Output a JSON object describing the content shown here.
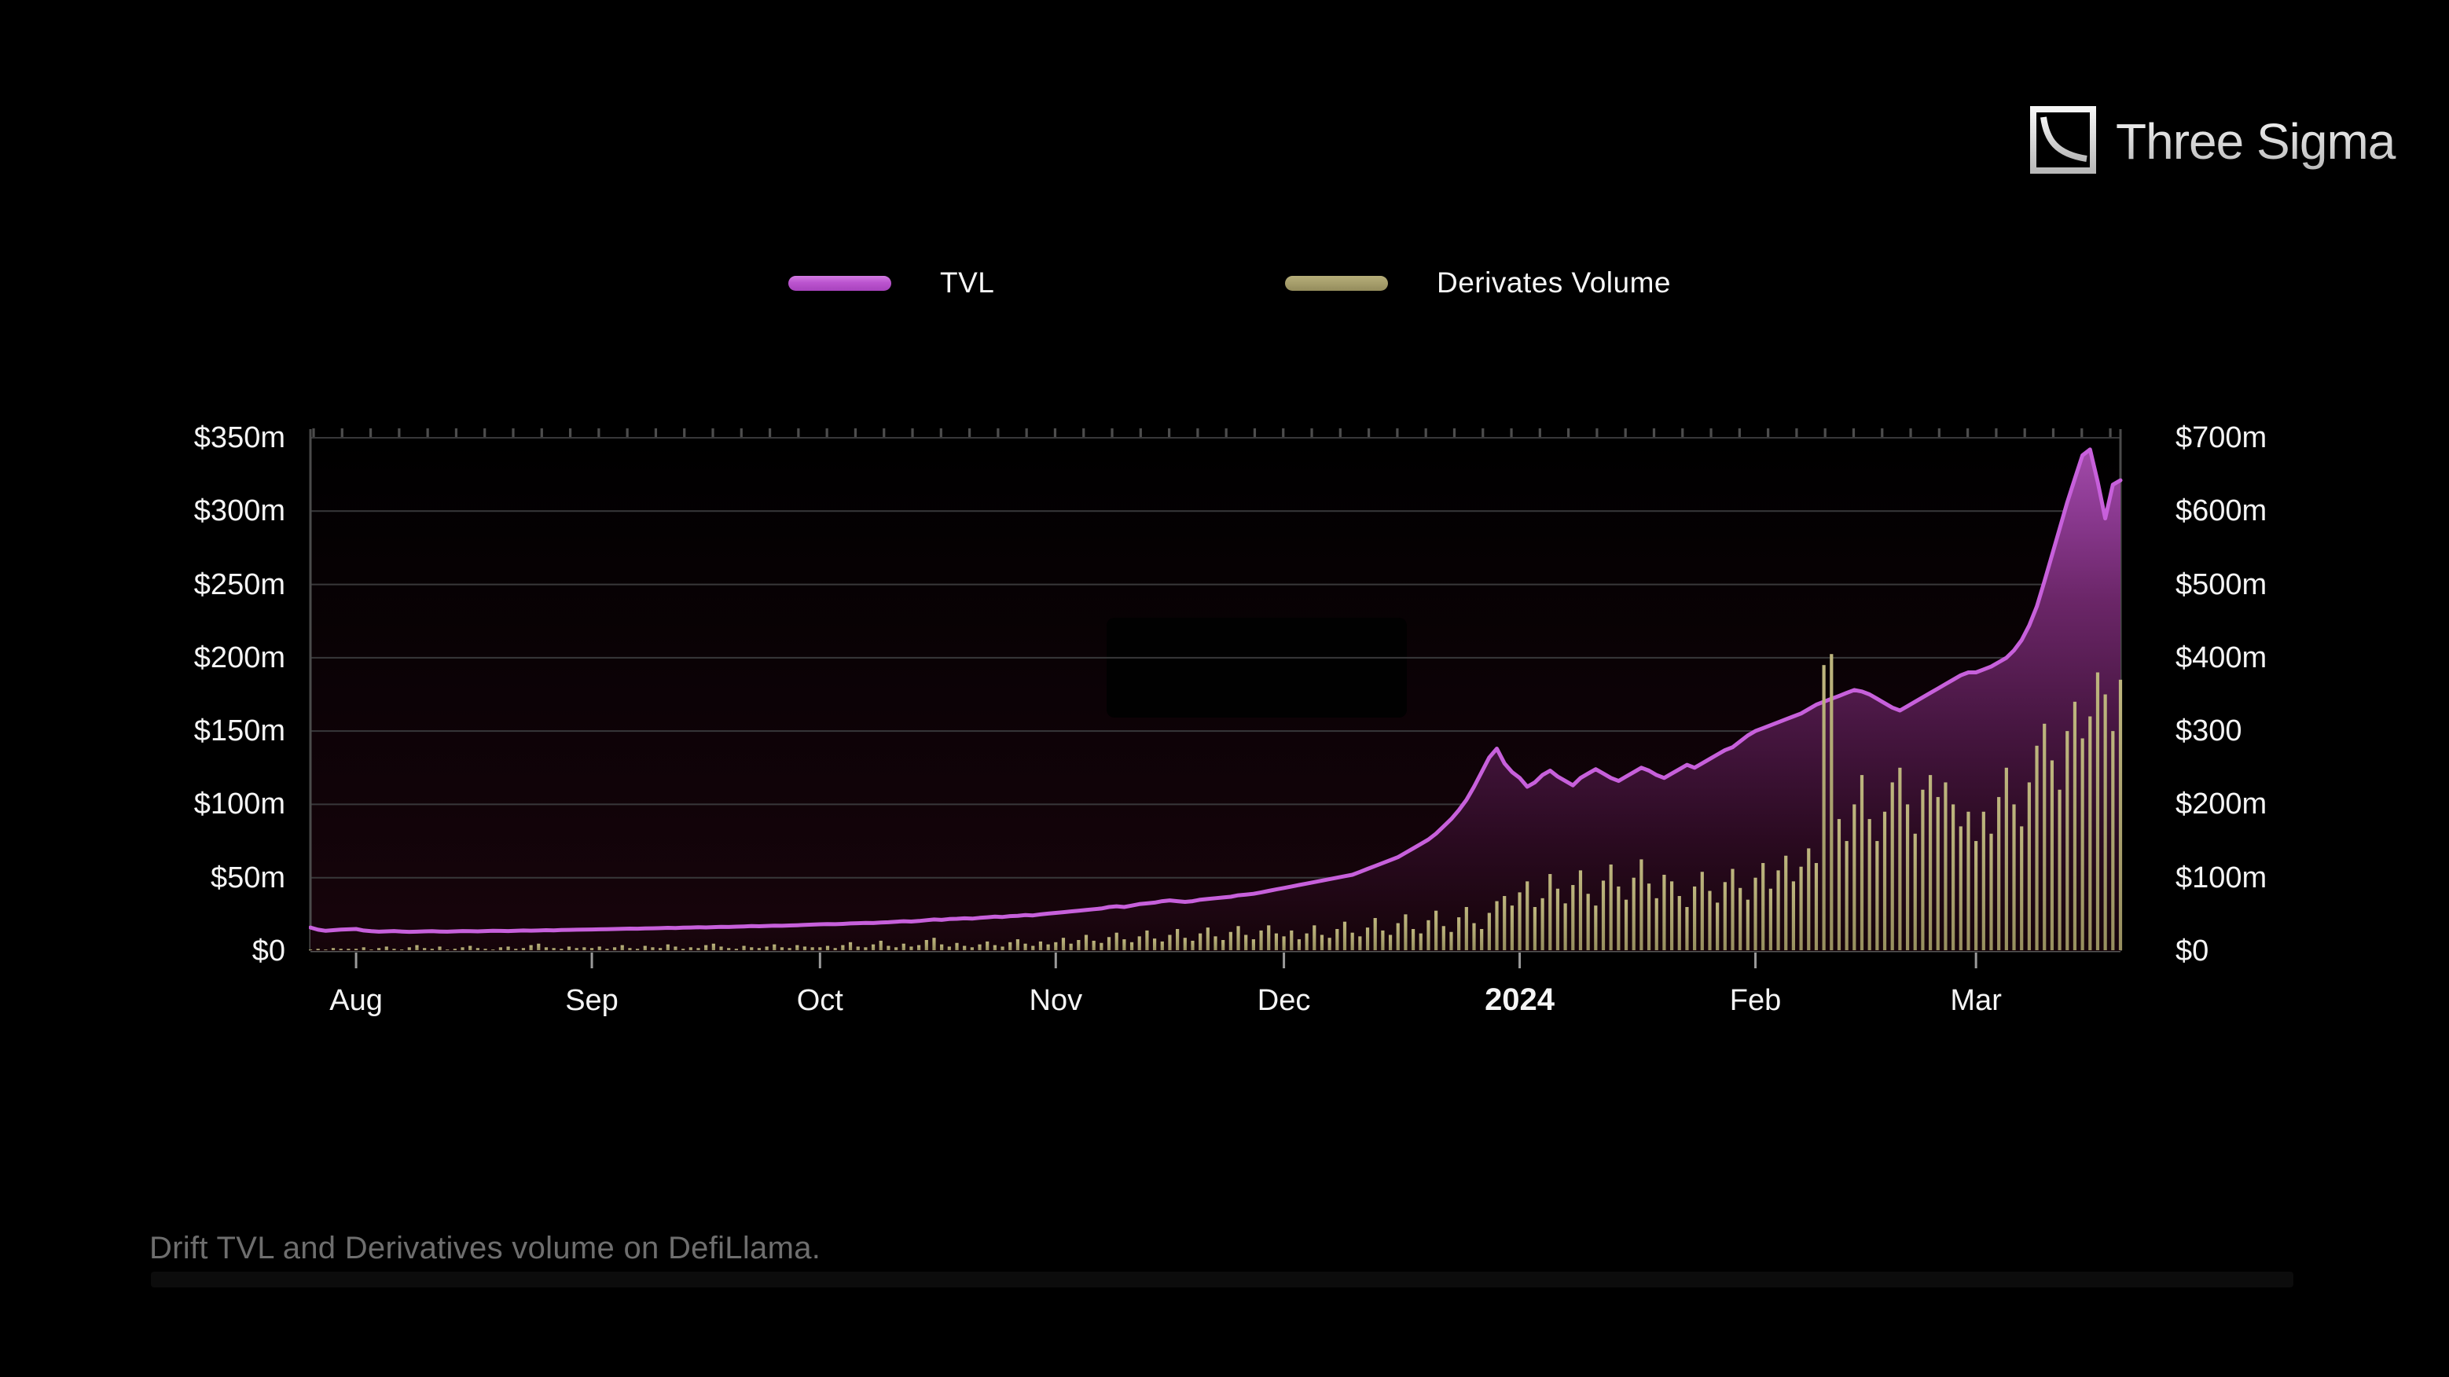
{
  "page": {
    "background": "#000000"
  },
  "logo": {
    "text": "Three Sigma"
  },
  "legend": [
    {
      "label": "TVL",
      "color": "#bb54cf"
    },
    {
      "label": "Derivates Volume",
      "color": "#a49c6a"
    }
  ],
  "caption": {
    "text": "Drift TVL and Derivatives volume on DefiLlama."
  },
  "chart_data": {
    "type": "combo",
    "title": "",
    "grid": true,
    "legend_position": "top",
    "left_axis": {
      "min": 0,
      "max": 350,
      "labels": [
        "$350m",
        "$300m",
        "$250m",
        "$200m",
        "$150m",
        "$100m",
        "$50m",
        "$0"
      ]
    },
    "right_axis": {
      "min": 0,
      "max": 700,
      "labels": [
        "$700m",
        "$600m",
        "$500m",
        "$400m",
        "$300",
        "$200m",
        "$100m",
        "$0"
      ]
    },
    "x": {
      "start": "2023-07-26",
      "end": "2024-03-20",
      "month_ticks": [
        {
          "index": 6,
          "label": "Aug",
          "emphasis": false
        },
        {
          "index": 37,
          "label": "Sep",
          "emphasis": false
        },
        {
          "index": 67,
          "label": "Oct",
          "emphasis": false
        },
        {
          "index": 98,
          "label": "Nov",
          "emphasis": false
        },
        {
          "index": 128,
          "label": "Dec",
          "emphasis": false
        },
        {
          "index": 159,
          "label": "2024",
          "emphasis": true
        },
        {
          "index": 190,
          "label": "Feb",
          "emphasis": false
        },
        {
          "index": 219,
          "label": "Mar",
          "emphasis": false
        }
      ]
    },
    "series": [
      {
        "name": "TVL",
        "type": "line",
        "axis": "left",
        "color": "#c760db",
        "unit": "$m",
        "values": [
          16,
          14.5,
          13.8,
          14.2,
          14.6,
          14.8,
          15,
          14,
          13.5,
          13.2,
          13.4,
          13.6,
          13.3,
          13.1,
          13.2,
          13.4,
          13.5,
          13.3,
          13.2,
          13.4,
          13.6,
          13.5,
          13.4,
          13.6,
          13.8,
          13.7,
          13.6,
          13.8,
          14,
          13.9,
          14,
          14.2,
          14.1,
          14.3,
          14.4,
          14.5,
          14.6,
          14.7,
          14.8,
          14.9,
          15,
          15.1,
          15.3,
          15.2,
          15.4,
          15.5,
          15.6,
          15.8,
          15.7,
          15.9,
          16,
          16.2,
          16.1,
          16.3,
          16.5,
          16.4,
          16.6,
          16.8,
          17,
          16.9,
          17.1,
          17.3,
          17.2,
          17.4,
          17.6,
          17.8,
          18,
          18.2,
          18.4,
          18.3,
          18.5,
          18.8,
          19,
          19.2,
          19.1,
          19.4,
          19.6,
          20,
          20.3,
          20.1,
          20.5,
          21,
          21.5,
          21.2,
          21.8,
          22,
          22.3,
          22.1,
          22.6,
          23,
          23.4,
          23.2,
          23.8,
          24,
          24.5,
          24.3,
          25,
          25.5,
          26,
          26.5,
          27,
          27.5,
          28,
          28.5,
          29,
          30,
          30.5,
          30,
          31,
          32,
          32.5,
          33,
          34,
          34.5,
          34,
          33.5,
          34,
          35,
          35.5,
          36,
          36.5,
          37,
          38,
          38.5,
          39,
          40,
          41,
          42,
          43,
          44,
          45,
          46,
          47,
          48,
          49,
          50,
          51,
          52,
          54,
          56,
          58,
          60,
          62,
          64,
          67,
          70,
          73,
          76,
          80,
          85,
          90,
          96,
          103,
          112,
          122,
          132,
          138,
          128,
          122,
          118,
          112,
          115,
          120,
          123,
          119,
          116,
          113,
          118,
          121,
          124,
          121,
          118,
          116,
          119,
          122,
          125,
          123,
          120,
          118,
          121,
          124,
          127,
          125,
          128,
          131,
          134,
          137,
          139,
          143,
          147,
          150,
          152,
          154,
          156,
          158,
          160,
          162,
          165,
          168,
          170,
          172,
          174,
          176,
          178,
          177,
          175,
          172,
          169,
          166,
          164,
          167,
          170,
          173,
          176,
          179,
          182,
          185,
          188,
          190,
          190,
          192,
          194,
          197,
          200,
          205,
          212,
          222,
          235,
          252,
          270,
          288,
          306,
          322,
          338,
          342,
          320,
          295,
          318,
          321
        ]
      },
      {
        "name": "Derivates Volume",
        "type": "bar",
        "axis": "right",
        "color": "#aca46f",
        "unit": "$m",
        "values": [
          2,
          3,
          2,
          4,
          3,
          3,
          3,
          5,
          2,
          4,
          6,
          3,
          2,
          5,
          8,
          4,
          3,
          6,
          2,
          3,
          5,
          7,
          4,
          3,
          2,
          5,
          6,
          3,
          4,
          8,
          10,
          5,
          4,
          3,
          6,
          4,
          5,
          4,
          6,
          3,
          5,
          8,
          4,
          3,
          7,
          5,
          4,
          9,
          6,
          3,
          5,
          4,
          8,
          10,
          6,
          4,
          3,
          7,
          5,
          4,
          6,
          9,
          5,
          4,
          8,
          6,
          5,
          5,
          7,
          4,
          8,
          12,
          6,
          5,
          9,
          14,
          7,
          5,
          10,
          6,
          8,
          15,
          18,
          9,
          6,
          11,
          7,
          5,
          9,
          13,
          8,
          6,
          12,
          16,
          10,
          7,
          13,
          9,
          12,
          18,
          10,
          15,
          22,
          14,
          11,
          19,
          25,
          16,
          12,
          20,
          28,
          17,
          13,
          22,
          30,
          18,
          14,
          24,
          32,
          20,
          15,
          26,
          34,
          22,
          16,
          28,
          35,
          24,
          20,
          28,
          16,
          24,
          35,
          22,
          18,
          30,
          40,
          25,
          20,
          32,
          45,
          28,
          22,
          38,
          50,
          30,
          24,
          42,
          55,
          34,
          26,
          46,
          60,
          38,
          30,
          52,
          68,
          75,
          62,
          80,
          95,
          60,
          72,
          105,
          85,
          65,
          90,
          110,
          78,
          62,
          96,
          118,
          88,
          70,
          100,
          125,
          92,
          72,
          104,
          95,
          75,
          60,
          88,
          108,
          82,
          66,
          94,
          112,
          86,
          70,
          100,
          120,
          85,
          110,
          130,
          95,
          115,
          140,
          120,
          390,
          405,
          180,
          150,
          200,
          240,
          180,
          150,
          190,
          230,
          250,
          200,
          160,
          220,
          240,
          210,
          230,
          200,
          170,
          190,
          150,
          190,
          160,
          210,
          250,
          200,
          170,
          230,
          280,
          310,
          260,
          220,
          300,
          340,
          290,
          320,
          380,
          350,
          300,
          370
        ]
      }
    ],
    "overlay": {
      "redaction_box": true
    }
  }
}
